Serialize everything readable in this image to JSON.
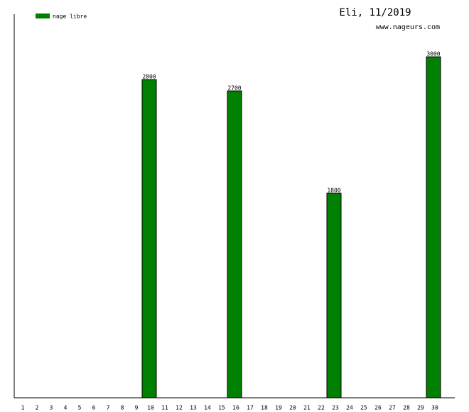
{
  "chart_data": {
    "type": "bar",
    "title": "Eli, 11/2019",
    "subtitle": "www.nageurs.com",
    "categories": [
      "1",
      "2",
      "3",
      "4",
      "5",
      "6",
      "7",
      "8",
      "9",
      "10",
      "11",
      "12",
      "13",
      "14",
      "15",
      "16",
      "17",
      "18",
      "19",
      "20",
      "21",
      "22",
      "23",
      "24",
      "25",
      "26",
      "27",
      "28",
      "29",
      "30"
    ],
    "series": [
      {
        "name": "nage libre",
        "color": "#008000",
        "values": [
          null,
          null,
          null,
          null,
          null,
          null,
          null,
          null,
          null,
          2800,
          null,
          null,
          null,
          null,
          null,
          2700,
          null,
          null,
          null,
          null,
          null,
          null,
          1800,
          null,
          null,
          null,
          null,
          null,
          null,
          3000
        ]
      }
    ],
    "ylim": [
      0,
      3375
    ]
  }
}
